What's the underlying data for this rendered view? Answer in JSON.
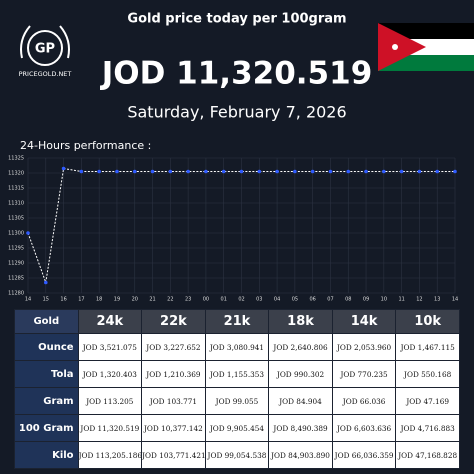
{
  "header": {
    "logo_initials": "GP",
    "logo_site": "PRICEGOLD.NET",
    "title": "Gold price today per 100gram",
    "price": "JOD 11,320.519",
    "date": "Saturday, February 7, 2026"
  },
  "chart_data": {
    "type": "line",
    "title": "24-Hours performance :",
    "categories": [
      "14",
      "15",
      "16",
      "17",
      "18",
      "19",
      "20",
      "21",
      "22",
      "23",
      "00",
      "01",
      "02",
      "03",
      "04",
      "05",
      "06",
      "07",
      "08",
      "09",
      "10",
      "11",
      "12",
      "13",
      "14"
    ],
    "values": [
      11300,
      11283.5,
      11321.5,
      11320.5,
      11320.5,
      11320.5,
      11320.5,
      11320.5,
      11320.5,
      11320.5,
      11320.5,
      11320.5,
      11320.5,
      11320.5,
      11320.5,
      11320.5,
      11320.5,
      11320.5,
      11320.5,
      11320.5,
      11320.5,
      11320.5,
      11320.5,
      11320.5,
      11320.5
    ],
    "color": "#ffffff",
    "marker_color": "#2f5bff",
    "ylim": [
      11280,
      11325
    ],
    "yticks": [
      11280,
      11285,
      11290,
      11295,
      11300,
      11305,
      11310,
      11315,
      11320,
      11325
    ],
    "grid": true
  },
  "table": {
    "header": [
      "Gold",
      "24k",
      "22k",
      "21k",
      "18k",
      "14k",
      "10k"
    ],
    "rows": [
      [
        "Ounce",
        "JOD 3,521.075",
        "JOD 3,227.652",
        "JOD 3,080.941",
        "JOD 2,640.806",
        "JOD 2,053.960",
        "JOD 1,467.115"
      ],
      [
        "Tola",
        "JOD 1,320.403",
        "JOD 1,210.369",
        "JOD 1,155.353",
        "JOD 990.302",
        "JOD 770.235",
        "JOD 550.168"
      ],
      [
        "Gram",
        "JOD 113.205",
        "JOD 103.771",
        "JOD 99.055",
        "JOD 84.904",
        "JOD 66.036",
        "JOD 47.169"
      ],
      [
        "100 Gram",
        "JOD 11,320.519",
        "JOD 10,377.142",
        "JOD 9,905.454",
        "JOD 8,490.389",
        "JOD 6,603.636",
        "JOD 4,716.883"
      ],
      [
        "Kilo",
        "JOD 113,205.186",
        "JOD 103,771.421",
        "JOD 99,054.538",
        "JOD 84,903.890",
        "JOD 66,036.359",
        "JOD 47,168.828"
      ]
    ]
  }
}
